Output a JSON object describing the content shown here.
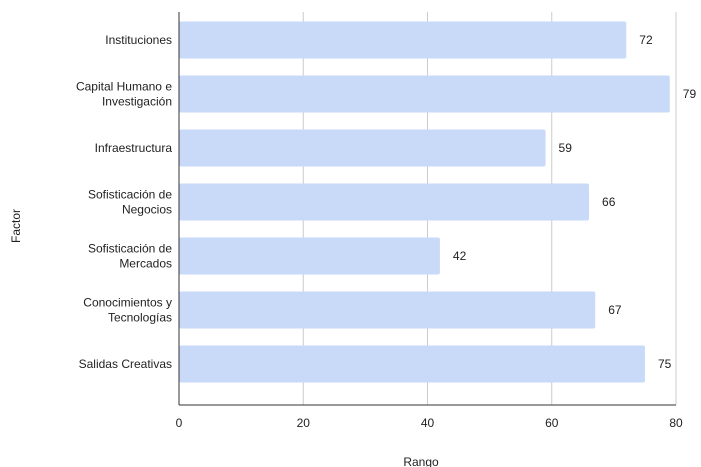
{
  "chart_data": {
    "type": "bar",
    "orientation": "horizontal",
    "categories": [
      [
        "Instituciones"
      ],
      [
        "Capital Humano e",
        "Investigación"
      ],
      [
        "Infraestructura"
      ],
      [
        "Sofisticación de",
        "Negocios"
      ],
      [
        "Sofisticación de",
        "Mercados"
      ],
      [
        "Conocimientos y",
        "Tecnologías"
      ],
      [
        "Salidas Creativas"
      ]
    ],
    "values": [
      72,
      79,
      59,
      66,
      42,
      67,
      75
    ],
    "xlabel": "Rango",
    "ylabel": "Factor",
    "xlim": [
      0,
      80
    ],
    "xticks": [
      0,
      20,
      40,
      60,
      80
    ],
    "grid": true,
    "bar_color": "#c9daf8",
    "grid_color": "#cccccc",
    "axis_color": "#333333"
  }
}
